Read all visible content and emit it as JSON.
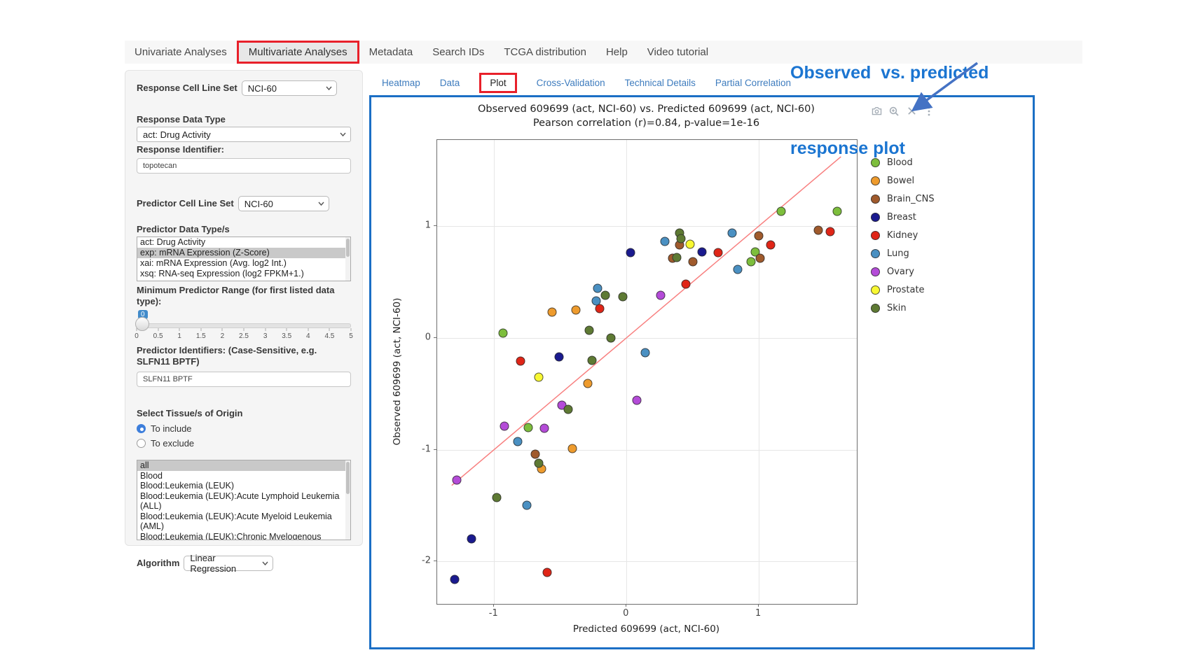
{
  "nav": {
    "items": [
      {
        "label": "Univariate Analyses",
        "active": false,
        "annotated": false
      },
      {
        "label": "Multivariate Analyses",
        "active": true,
        "annotated": true
      },
      {
        "label": "Metadata",
        "active": false,
        "annotated": false
      },
      {
        "label": "Search IDs",
        "active": false,
        "annotated": false
      },
      {
        "label": "TCGA distribution",
        "active": false,
        "annotated": false
      },
      {
        "label": "Help",
        "active": false,
        "annotated": false
      },
      {
        "label": "Video tutorial",
        "active": false,
        "annotated": false
      }
    ]
  },
  "sidebar": {
    "response_cell_line_set": {
      "label": "Response Cell Line Set",
      "value": "NCI-60"
    },
    "response_data_type": {
      "label": "Response Data Type",
      "value": "act: Drug Activity"
    },
    "response_identifier": {
      "label": "Response Identifier:",
      "value": "topotecan"
    },
    "predictor_cell_line_set": {
      "label": "Predictor Cell Line Set",
      "value": "NCI-60"
    },
    "predictor_data_types": {
      "label": "Predictor Data Type/s",
      "options": [
        "act: Drug Activity",
        "exp: mRNA Expression (Z-Score)",
        "xai: mRNA Expression (Avg. log2 Int.)",
        "xsq: RNA-seq Expression (log2 FPKM+1.)"
      ],
      "selected_index": 1
    },
    "min_predictor_range": {
      "label": "Minimum Predictor Range (for first listed data type):",
      "value_badge": "0",
      "ticks": [
        "0",
        "0.5",
        "1",
        "1.5",
        "2",
        "2.5",
        "3",
        "3.5",
        "4",
        "4.5",
        "5"
      ]
    },
    "predictor_identifiers": {
      "label": "Predictor Identifiers: (Case-Sensitive, e.g. SLFN11 BPTF)",
      "value": "SLFN11 BPTF"
    },
    "tissue_origin": {
      "label": "Select Tissue/s of Origin",
      "radios": [
        {
          "label": "To include",
          "selected": true
        },
        {
          "label": "To exclude",
          "selected": false
        }
      ],
      "options": [
        "all",
        "Blood",
        "Blood:Leukemia (LEUK)",
        "Blood:Leukemia (LEUK):Acute Lymphoid Leukemia (ALL)",
        "Blood:Leukemia (LEUK):Acute Myeloid Leukemia (AML)",
        "Blood:Leukemia (LEUK):Chronic Myelogenous Leukemia (CML)"
      ],
      "selected_index": 0
    },
    "algorithm": {
      "label": "Algorithm",
      "value": "Linear Regression"
    }
  },
  "tabs": [
    {
      "label": "Heatmap",
      "active": false,
      "annotated": false
    },
    {
      "label": "Data",
      "active": false,
      "annotated": false
    },
    {
      "label": "Plot",
      "active": true,
      "annotated": true
    },
    {
      "label": "Cross-Validation",
      "active": false,
      "annotated": false
    },
    {
      "label": "Technical Details",
      "active": false,
      "annotated": false
    },
    {
      "label": "Partial Correlation",
      "active": false,
      "annotated": false
    }
  ],
  "toolbar": {
    "icons": [
      {
        "name": "camera-icon"
      },
      {
        "name": "zoom-in-icon"
      },
      {
        "name": "pan-icon"
      },
      {
        "name": "more-options-icon"
      }
    ]
  },
  "callout": {
    "line1": "Observed  vs. predicted",
    "line2": "response plot",
    "text_color": "#1B75D1",
    "arrow_color": "#4472C4",
    "highlight_box_color": "#E8202A"
  },
  "chart_data": {
    "type": "scatter",
    "title": "Observed 609699 (act, NCI-60) vs. Predicted 609699 (act, NCI-60)",
    "subtitle": "Pearson correlation (r)=0.84, p-value=1e-16",
    "xlabel": "Predicted 609699 (act, NCI-60)",
    "ylabel": "Observed 609699 (act, NCI-60)",
    "xlim": [
      -1.43,
      1.74
    ],
    "ylim": [
      -2.38,
      1.77
    ],
    "x_ticks": [
      -1,
      0,
      1
    ],
    "y_ticks": [
      1,
      0,
      -1,
      -2
    ],
    "grid": true,
    "legend_position": "right",
    "identity_line": {
      "x1": -1.32,
      "y1": -1.32,
      "x2": 1.62,
      "y2": 1.62,
      "color": "#F87F7F"
    },
    "series": [
      {
        "name": "Blood",
        "color": "#7DBE3C",
        "points": [
          [
            -0.93,
            0.04
          ],
          [
            0.97,
            0.77
          ],
          [
            0.94,
            0.68
          ],
          [
            1.17,
            1.13
          ],
          [
            1.59,
            1.13
          ],
          [
            -0.74,
            -0.8
          ]
        ]
      },
      {
        "name": "Bowel",
        "color": "#EE9B2D",
        "points": [
          [
            -0.56,
            0.23
          ],
          [
            -0.38,
            0.25
          ],
          [
            -0.29,
            -0.41
          ],
          [
            -0.41,
            -0.99
          ],
          [
            -0.64,
            -1.17
          ]
        ]
      },
      {
        "name": "Brain_CNS",
        "color": "#A05A2C",
        "points": [
          [
            0.4,
            0.83
          ],
          [
            0.35,
            0.71
          ],
          [
            0.5,
            0.68
          ],
          [
            1.0,
            0.91
          ],
          [
            1.01,
            0.71
          ],
          [
            1.45,
            0.96
          ],
          [
            -0.69,
            -1.04
          ]
        ]
      },
      {
        "name": "Breast",
        "color": "#1A1A8F",
        "points": [
          [
            0.03,
            0.76
          ],
          [
            0.57,
            0.77
          ],
          [
            -0.51,
            -0.17
          ],
          [
            -1.17,
            -1.8
          ],
          [
            -1.3,
            -2.16
          ]
        ]
      },
      {
        "name": "Kidney",
        "color": "#E02517",
        "points": [
          [
            -0.2,
            0.26
          ],
          [
            0.69,
            0.76
          ],
          [
            1.09,
            0.83
          ],
          [
            0.45,
            0.48
          ],
          [
            1.54,
            0.95
          ],
          [
            -0.8,
            -0.21
          ],
          [
            -0.6,
            -2.1
          ]
        ]
      },
      {
        "name": "Lung",
        "color": "#4A90C2",
        "points": [
          [
            -0.22,
            0.44
          ],
          [
            -0.23,
            0.33
          ],
          [
            0.29,
            0.86
          ],
          [
            0.8,
            0.94
          ],
          [
            0.84,
            0.61
          ],
          [
            0.14,
            -0.13
          ],
          [
            -0.82,
            -0.93
          ],
          [
            -0.75,
            -1.5
          ]
        ]
      },
      {
        "name": "Ovary",
        "color": "#B44BD8",
        "points": [
          [
            0.26,
            0.38
          ],
          [
            -0.92,
            -0.79
          ],
          [
            -0.62,
            -0.81
          ],
          [
            -0.49,
            -0.6
          ],
          [
            0.08,
            -0.56
          ],
          [
            -1.28,
            -1.27
          ]
        ]
      },
      {
        "name": "Prostate",
        "color": "#F8F832",
        "points": [
          [
            0.48,
            0.84
          ],
          [
            -0.66,
            -0.35
          ]
        ]
      },
      {
        "name": "Skin",
        "color": "#5E7A33",
        "points": [
          [
            -0.28,
            0.07
          ],
          [
            0.4,
            0.94
          ],
          [
            0.41,
            0.89
          ],
          [
            0.38,
            0.72
          ],
          [
            -0.03,
            0.37
          ],
          [
            -0.16,
            0.38
          ],
          [
            -0.12,
            0.0
          ],
          [
            -0.26,
            -0.2
          ],
          [
            -0.44,
            -0.64
          ],
          [
            -0.98,
            -1.43
          ],
          [
            -0.66,
            -1.12
          ]
        ]
      }
    ]
  }
}
